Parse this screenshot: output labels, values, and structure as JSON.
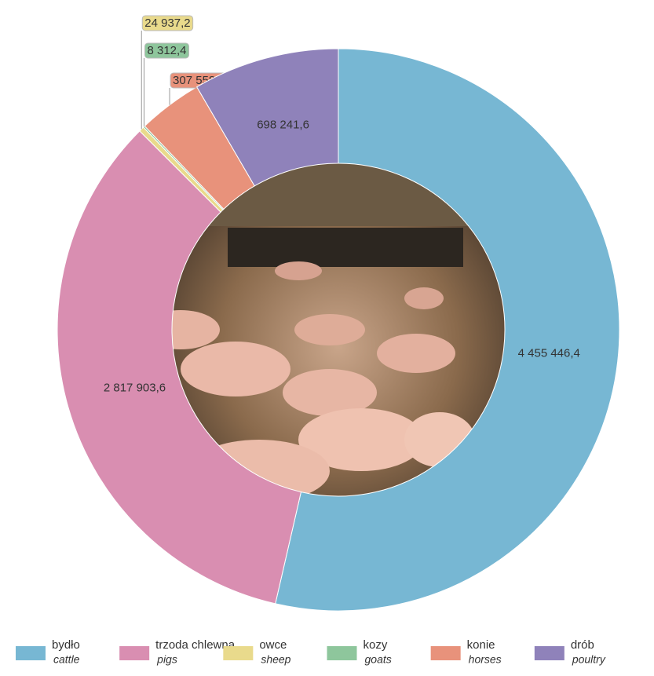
{
  "chart_data": {
    "type": "donut",
    "categories": [
      "bydło",
      "trzoda chlewna",
      "owce",
      "kozy",
      "konie",
      "drób"
    ],
    "categories_en": [
      "cattle",
      "pigs",
      "sheep",
      "goats",
      "horses",
      "poultry"
    ],
    "values": [
      4455446.4,
      2817903.6,
      24937.2,
      8312.4,
      307558.8,
      698241.6
    ],
    "value_labels": [
      "4 455 446,4",
      "2 817 903,6",
      "24 937,2",
      "8 312,4",
      "307 558,8",
      "698 241,6"
    ],
    "colors": [
      "#77b7d3",
      "#d98eb1",
      "#e9da8c",
      "#8ec69c",
      "#e8927b",
      "#8f82ba"
    ],
    "legend": "bottom"
  }
}
